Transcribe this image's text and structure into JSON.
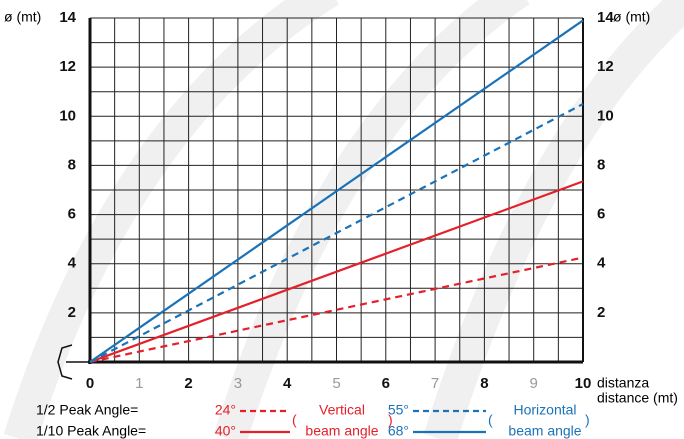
{
  "chart_data": {
    "type": "line",
    "y_label": "ø (mt)",
    "x_label": [
      "distanza",
      "distance (mt)"
    ],
    "xlim": [
      0,
      10
    ],
    "xticks": [
      0,
      1,
      2,
      3,
      4,
      5,
      6,
      7,
      8,
      9,
      10
    ],
    "ylim": [
      0,
      14
    ],
    "yticks": [
      2,
      4,
      6,
      8,
      10,
      12,
      14
    ],
    "grid": true,
    "minor_grid": true,
    "legend_rows": [
      "1/2 Peak Angle=",
      "1/10 Peak Angle="
    ],
    "legend_groups": [
      [
        "Vertical",
        "beam angle"
      ],
      [
        "Horizontal",
        "beam angle"
      ]
    ],
    "series": [
      {
        "name": "24°",
        "color": "#e4202a",
        "dashed": true,
        "group": 0,
        "row": 0,
        "x": [
          0,
          10
        ],
        "values": [
          0,
          4.25
        ]
      },
      {
        "name": "40°",
        "color": "#e4202a",
        "dashed": false,
        "group": 0,
        "row": 1,
        "x": [
          0,
          10
        ],
        "values": [
          0,
          7.35
        ]
      },
      {
        "name": "55°",
        "color": "#1a72b9",
        "dashed": true,
        "group": 1,
        "row": 0,
        "x": [
          0,
          10
        ],
        "values": [
          0,
          10.5
        ]
      },
      {
        "name": "68°",
        "color": "#1a72b9",
        "dashed": false,
        "group": 1,
        "row": 1,
        "x": [
          0,
          10
        ],
        "values": [
          0,
          13.9
        ]
      }
    ]
  }
}
